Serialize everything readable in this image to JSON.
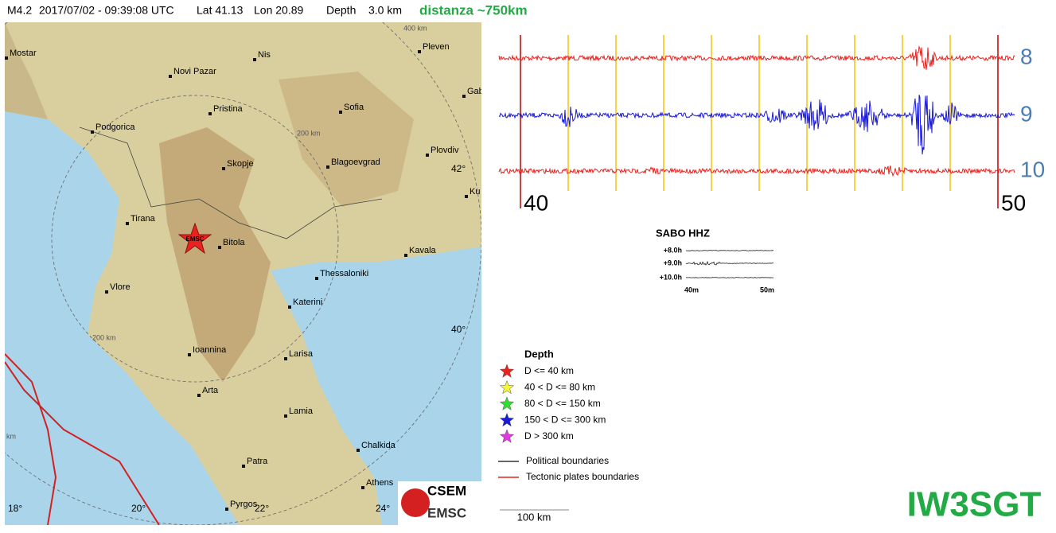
{
  "header": {
    "items": [
      "M4.2",
      "2017/07/02 - 09:39:08 UTC",
      "Lat 41.13",
      "Lon 20.89",
      "Depth",
      "3.0 km"
    ],
    "note": "distanza ~750km"
  },
  "map": {
    "cities": [
      "Mostar",
      "Novi Pazar",
      "Nis",
      "Pleven",
      "Pristina",
      "Sofia",
      "Gab",
      "Podgorica",
      "Plovdiv",
      "Skopje",
      "Blagoevgrad",
      "Ku",
      "Tirana",
      "Bitola",
      "Kavala",
      "Thessaloniki",
      "Vlore",
      "Katerini",
      "Ioannina",
      "Larisa",
      "Arta",
      "Lamia",
      "Chalkida",
      "Patra",
      "Athens",
      "Pyrgos"
    ],
    "rings": [
      "400 km",
      "200 km",
      "200 km",
      "km"
    ],
    "lat_labels": [
      "42°",
      "40°"
    ],
    "lon_labels": [
      "18°",
      "20°",
      "22°",
      "24°"
    ],
    "epicenter_label": "EMSC"
  },
  "seismogram": {
    "hours": [
      "8",
      "9",
      "10"
    ],
    "minutes": [
      "40",
      "50"
    ]
  },
  "small_seismogram": {
    "title": "SABO HHZ",
    "hours": [
      "+8.0h",
      "+9.0h",
      "+10.0h"
    ],
    "minutes": [
      "40m",
      "50m"
    ]
  },
  "legend": {
    "title": "Depth",
    "entries": [
      {
        "label": "D <= 40 km",
        "color": "#e8231f"
      },
      {
        "label": "40 < D <= 80 km",
        "color": "#f5f53a"
      },
      {
        "label": "80 < D <= 150 km",
        "color": "#2ee02e"
      },
      {
        "label": "150 < D <= 300 km",
        "color": "#1a1ad8"
      },
      {
        "label": "D > 300 km",
        "color": "#e03ae0"
      }
    ],
    "lines": [
      {
        "label": "Political boundaries",
        "color": "#333333"
      },
      {
        "label": "Tectonic plates boundaries",
        "color": "#e8231f"
      }
    ]
  },
  "logo": [
    "CSEM",
    "EMSC"
  ],
  "scale": "100 km",
  "signature": "IW3SGT"
}
